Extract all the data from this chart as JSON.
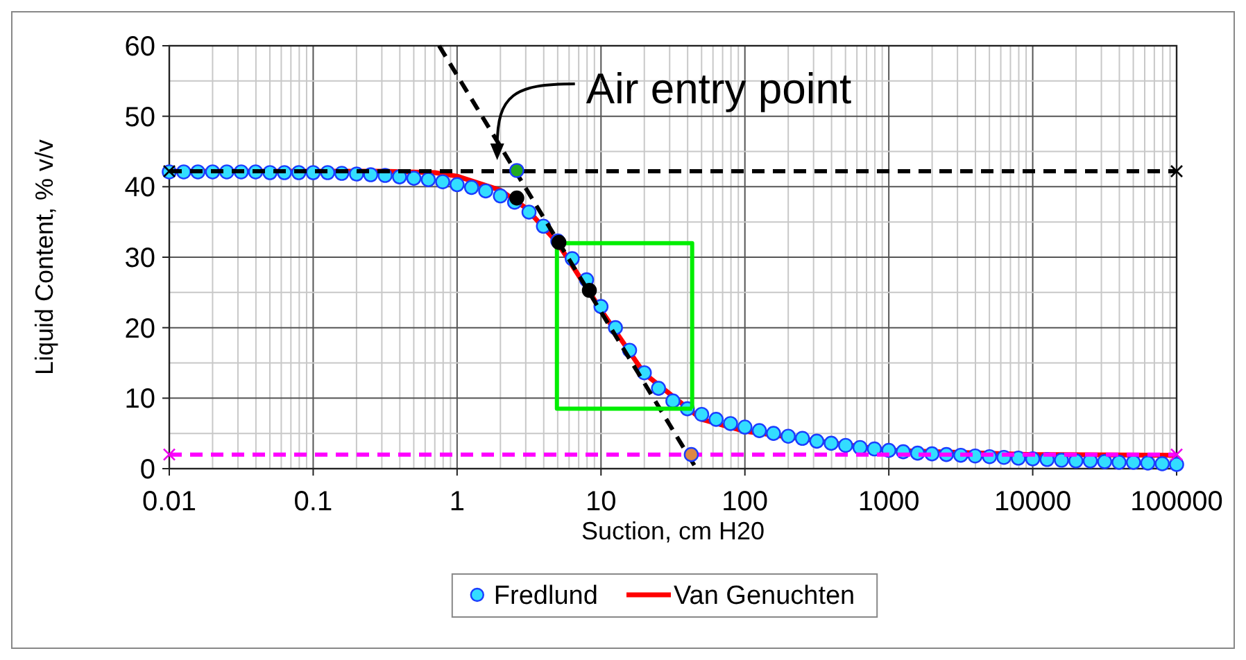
{
  "chart_data": {
    "type": "line",
    "xlabel": "Suction, cm H20",
    "ylabel": "Liquid Content, % v/v",
    "log": "x",
    "grid": true,
    "legend": "bottom",
    "xlim": [
      0.01,
      100000
    ],
    "xticks": [
      0.01,
      0.1,
      1,
      10,
      100,
      1000,
      10000,
      100000
    ],
    "ylim": [
      0,
      60
    ],
    "yticks": [
      0,
      10,
      20,
      30,
      40,
      50,
      60
    ],
    "annotations": [
      {
        "text": "Air entry point",
        "x": 1.9,
        "y": 42.2
      }
    ],
    "series": [
      {
        "name": "Fredlund",
        "type": "scatter",
        "marker": "circle",
        "color": "#33ddff",
        "x": [
          0.01,
          0.0126,
          0.0158,
          0.02,
          0.0251,
          0.0316,
          0.0398,
          0.0501,
          0.0631,
          0.0794,
          0.1,
          0.126,
          0.158,
          0.2,
          0.251,
          0.316,
          0.398,
          0.501,
          0.631,
          0.794,
          1,
          1.26,
          1.58,
          2,
          2.51,
          3.16,
          3.98,
          5.01,
          6.31,
          7.94,
          10,
          12.6,
          15.8,
          20,
          25.1,
          31.6,
          39.8,
          50.1,
          63.1,
          79.4,
          100,
          126,
          158,
          200,
          251,
          316,
          398,
          501,
          631,
          794,
          1000,
          1259,
          1585,
          1995,
          2512,
          3162,
          3981,
          5012,
          6310,
          7943,
          10000,
          12589,
          15849,
          19953,
          25119,
          31623,
          39811,
          50119,
          63096,
          79433,
          100000
        ],
        "values": [
          42.1,
          42.1,
          42.1,
          42.1,
          42.1,
          42.1,
          42.1,
          42,
          42,
          42,
          42,
          42,
          41.9,
          41.8,
          41.7,
          41.6,
          41.4,
          41.2,
          41,
          40.7,
          40.3,
          39.9,
          39.4,
          38.7,
          37.8,
          36.4,
          34.4,
          32.3,
          29.8,
          26.8,
          23,
          20,
          16.8,
          13.6,
          11.4,
          9.6,
          8.5,
          7.7,
          7,
          6.4,
          5.9,
          5.4,
          5,
          4.6,
          4.3,
          3.9,
          3.6,
          3.3,
          3,
          2.8,
          2.6,
          2.4,
          2.2,
          2.1,
          2,
          1.9,
          1.8,
          1.7,
          1.6,
          1.5,
          1.4,
          1.3,
          1.2,
          1.1,
          1.1,
          1,
          0.9,
          0.9,
          0.8,
          0.7,
          0.6
        ]
      },
      {
        "name": "Van Genuchten",
        "color": "#ff0000",
        "x": [
          0.01,
          0.3,
          0.7,
          1,
          2,
          3,
          5,
          10,
          20,
          50,
          100,
          1000,
          10000,
          100000
        ],
        "values": [
          42.2,
          42.2,
          42,
          41.5,
          39.5,
          37,
          32,
          22.5,
          13.5,
          7,
          5.3,
          2.6,
          2,
          1.9
        ]
      },
      {
        "color": "#000000",
        "line_style": "dashed",
        "marker": "cross",
        "x": [
          0.01,
          100000
        ],
        "values": [
          42.2,
          42.2
        ]
      },
      {
        "color": "#ff00ff",
        "line_style": "dashed",
        "marker": "cross",
        "x": [
          0.01,
          100000
        ],
        "values": [
          2,
          2
        ]
      },
      {
        "color": "#000000",
        "line_style": "dashed",
        "x": [
          0.75,
          46
        ],
        "values": [
          60,
          0
        ]
      },
      {
        "color": "#00ee00",
        "x": [
          4.94,
          43,
          43
        ],
        "values": [
          32,
          32,
          8.5
        ]
      },
      {
        "color": "#00ee00",
        "x": [
          4.94,
          4.94,
          43
        ],
        "values": [
          32,
          8.5,
          8.5
        ]
      },
      {
        "type": "scatter",
        "marker": "circle",
        "color": "#000000",
        "x": [
          2.6,
          5.1,
          8.3
        ],
        "values": [
          38.4,
          32.1,
          25.3
        ]
      },
      {
        "type": "scatter",
        "marker": "circle",
        "color": "#22aa22",
        "x": [
          2.6
        ],
        "values": [
          42.3
        ]
      },
      {
        "type": "scatter",
        "marker": "circle",
        "color": "#dd8844",
        "x": [
          42.4
        ],
        "values": [
          2
        ]
      }
    ]
  }
}
